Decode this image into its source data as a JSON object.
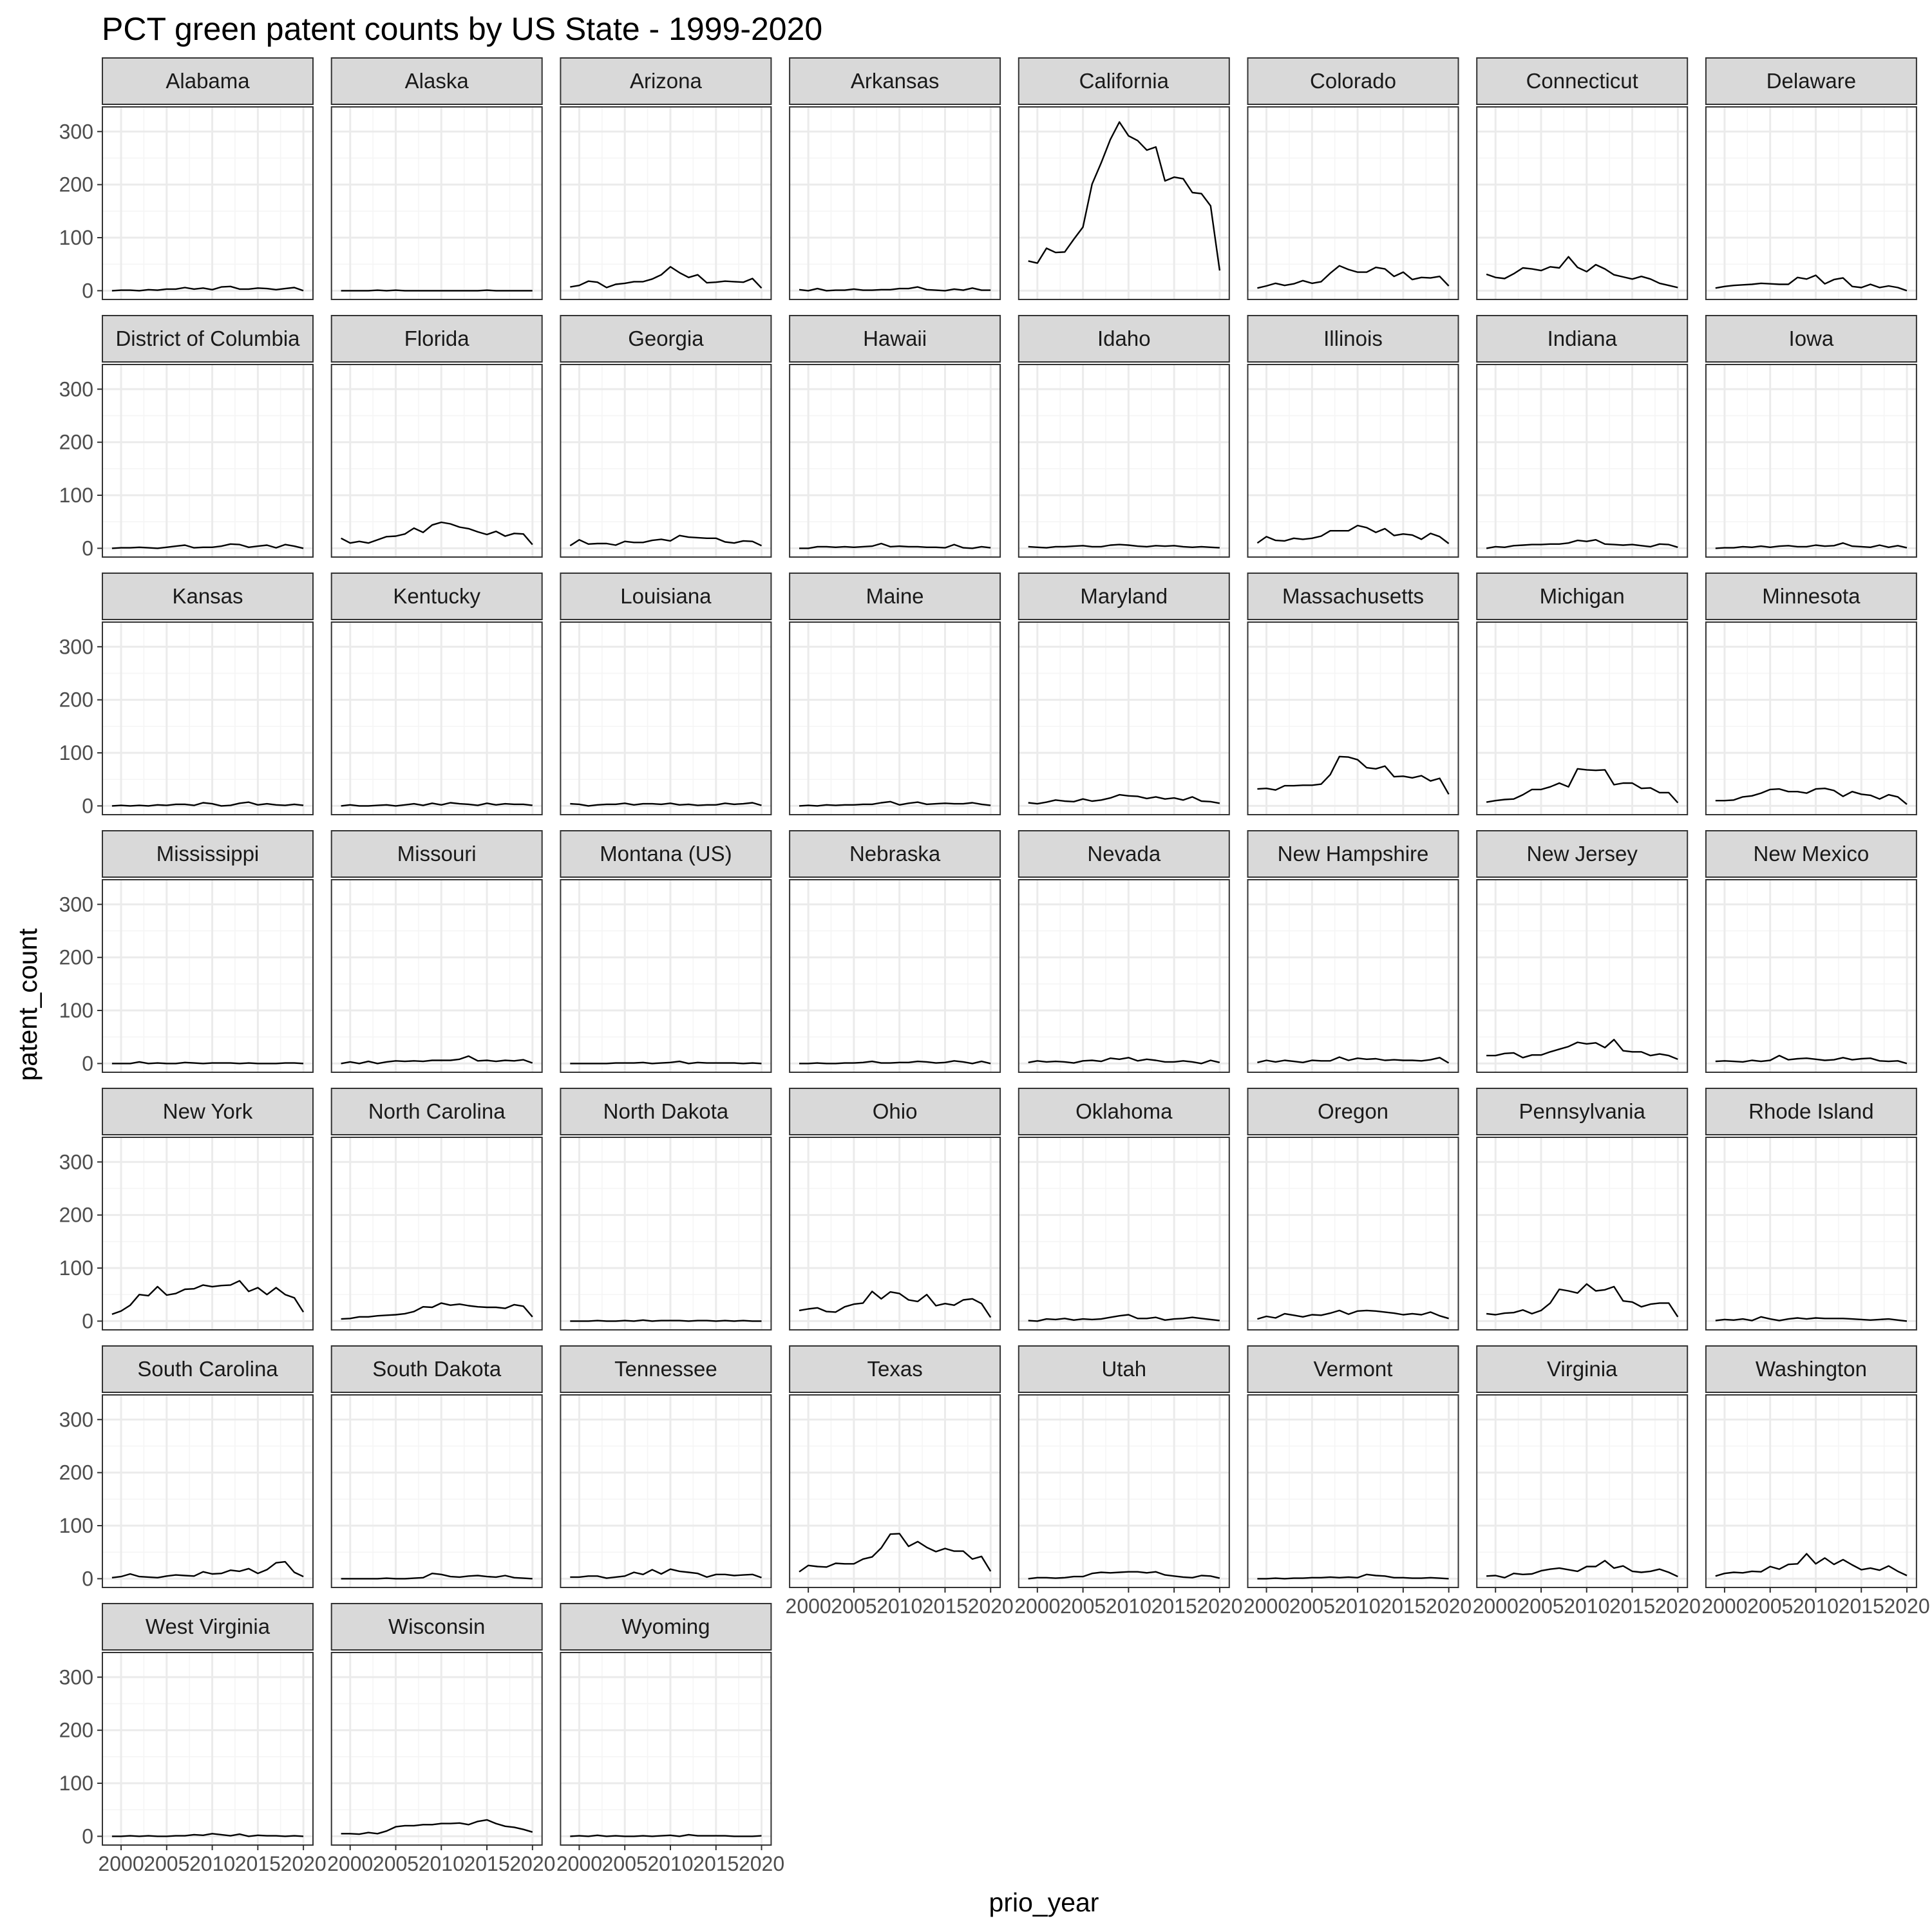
{
  "chart_data": {
    "type": "line",
    "title": "PCT green patent counts by US State - 1999-2020",
    "xlabel": "prio_year",
    "ylabel": "patent_count",
    "xlim": [
      1999,
      2020
    ],
    "ylim": [
      0,
      330
    ],
    "x_ticks": [
      2000,
      2005,
      2010,
      2015,
      2020
    ],
    "x_tick_labels": [
      "2000",
      "2005",
      "2010",
      "2015",
      "2020"
    ],
    "y_ticks": [
      0,
      100,
      200,
      300
    ],
    "y_tick_labels": [
      "0",
      "100",
      "200",
      "300"
    ],
    "grid": true,
    "facet_columns": 8,
    "line_color": "#000000",
    "x": [
      1999,
      2000,
      2001,
      2002,
      2003,
      2004,
      2005,
      2006,
      2007,
      2008,
      2009,
      2010,
      2011,
      2012,
      2013,
      2014,
      2015,
      2016,
      2017,
      2018,
      2019,
      2020
    ],
    "panels": [
      {
        "name": "Alabama",
        "values": [
          0,
          1,
          1,
          0,
          2,
          1,
          3,
          3,
          6,
          3,
          5,
          2,
          7,
          8,
          3,
          3,
          5,
          4,
          2,
          4,
          6,
          0
        ]
      },
      {
        "name": "Alaska",
        "values": [
          0,
          0,
          0,
          0,
          1,
          0,
          1,
          0,
          0,
          0,
          0,
          0,
          0,
          0,
          0,
          0,
          1,
          0,
          0,
          0,
          0,
          0
        ]
      },
      {
        "name": "Arizona",
        "values": [
          7,
          10,
          18,
          16,
          6,
          12,
          14,
          17,
          17,
          22,
          30,
          45,
          34,
          25,
          30,
          15,
          16,
          18,
          17,
          16,
          23,
          5
        ]
      },
      {
        "name": "Arkansas",
        "values": [
          2,
          0,
          4,
          0,
          1,
          1,
          3,
          1,
          1,
          2,
          2,
          4,
          4,
          7,
          2,
          1,
          0,
          3,
          1,
          5,
          1,
          1
        ]
      },
      {
        "name": "California",
        "values": [
          56,
          52,
          80,
          72,
          73,
          97,
          120,
          201,
          241,
          285,
          318,
          292,
          283,
          265,
          271,
          207,
          214,
          211,
          185,
          183,
          160,
          38
        ]
      },
      {
        "name": "Colorado",
        "values": [
          5,
          9,
          14,
          10,
          13,
          19,
          14,
          17,
          33,
          47,
          40,
          35,
          35,
          44,
          41,
          27,
          35,
          21,
          25,
          24,
          27,
          9
        ]
      },
      {
        "name": "Connecticut",
        "values": [
          31,
          25,
          23,
          32,
          43,
          41,
          38,
          45,
          43,
          64,
          44,
          36,
          49,
          41,
          30,
          26,
          22,
          27,
          22,
          14,
          10,
          6
        ]
      },
      {
        "name": "Delaware",
        "values": [
          5,
          8,
          10,
          11,
          12,
          14,
          13,
          12,
          12,
          25,
          22,
          29,
          13,
          21,
          24,
          8,
          6,
          12,
          6,
          9,
          6,
          0
        ]
      },
      {
        "name": "District of Columbia",
        "values": [
          0,
          1,
          1,
          2,
          1,
          0,
          2,
          4,
          6,
          1,
          2,
          2,
          4,
          8,
          7,
          2,
          4,
          6,
          1,
          7,
          4,
          0
        ]
      },
      {
        "name": "Florida",
        "values": [
          19,
          10,
          13,
          10,
          16,
          22,
          23,
          27,
          38,
          30,
          44,
          49,
          46,
          40,
          37,
          31,
          26,
          32,
          23,
          28,
          27,
          7
        ]
      },
      {
        "name": "Georgia",
        "values": [
          5,
          16,
          8,
          9,
          9,
          6,
          13,
          11,
          11,
          15,
          17,
          14,
          24,
          21,
          20,
          19,
          19,
          12,
          10,
          14,
          13,
          5
        ]
      },
      {
        "name": "Hawaii",
        "values": [
          0,
          0,
          3,
          3,
          2,
          3,
          2,
          3,
          4,
          9,
          3,
          4,
          3,
          3,
          2,
          2,
          1,
          7,
          1,
          0,
          3,
          1
        ]
      },
      {
        "name": "Idaho",
        "values": [
          3,
          2,
          1,
          3,
          3,
          4,
          5,
          3,
          3,
          6,
          7,
          6,
          4,
          3,
          5,
          4,
          5,
          3,
          2,
          3,
          2,
          1
        ]
      },
      {
        "name": "Illinois",
        "values": [
          10,
          22,
          15,
          14,
          19,
          17,
          19,
          23,
          33,
          33,
          33,
          43,
          39,
          30,
          37,
          24,
          27,
          25,
          17,
          28,
          22,
          9
        ]
      },
      {
        "name": "Indiana",
        "values": [
          0,
          3,
          2,
          5,
          6,
          7,
          7,
          8,
          8,
          10,
          15,
          13,
          16,
          8,
          7,
          6,
          7,
          5,
          3,
          8,
          7,
          2
        ]
      },
      {
        "name": "Iowa",
        "values": [
          0,
          1,
          1,
          3,
          2,
          4,
          2,
          4,
          5,
          3,
          3,
          6,
          4,
          5,
          10,
          4,
          3,
          2,
          6,
          2,
          5,
          1
        ]
      },
      {
        "name": "Kansas",
        "values": [
          0,
          1,
          0,
          1,
          0,
          2,
          1,
          3,
          3,
          1,
          6,
          4,
          0,
          1,
          5,
          7,
          2,
          4,
          2,
          1,
          3,
          1
        ]
      },
      {
        "name": "Kentucky",
        "values": [
          0,
          2,
          0,
          0,
          1,
          2,
          0,
          2,
          4,
          1,
          5,
          2,
          6,
          4,
          3,
          1,
          5,
          2,
          4,
          3,
          3,
          1
        ]
      },
      {
        "name": "Louisiana",
        "values": [
          4,
          3,
          0,
          2,
          3,
          3,
          5,
          2,
          4,
          4,
          3,
          5,
          2,
          3,
          1,
          2,
          2,
          5,
          3,
          4,
          6,
          1
        ]
      },
      {
        "name": "Maine",
        "values": [
          0,
          1,
          0,
          2,
          1,
          2,
          2,
          3,
          3,
          6,
          8,
          2,
          5,
          7,
          3,
          4,
          5,
          4,
          4,
          6,
          3,
          1
        ]
      },
      {
        "name": "Maryland",
        "values": [
          6,
          4,
          7,
          11,
          9,
          8,
          13,
          9,
          11,
          15,
          21,
          19,
          18,
          14,
          17,
          13,
          15,
          11,
          17,
          9,
          8,
          5
        ]
      },
      {
        "name": "Massachusetts",
        "values": [
          32,
          33,
          30,
          38,
          38,
          39,
          39,
          41,
          59,
          93,
          92,
          87,
          72,
          70,
          75,
          55,
          56,
          53,
          57,
          47,
          52,
          22
        ]
      },
      {
        "name": "Michigan",
        "values": [
          7,
          10,
          12,
          13,
          21,
          31,
          31,
          36,
          43,
          36,
          70,
          68,
          67,
          68,
          40,
          43,
          43,
          33,
          34,
          25,
          25,
          6
        ]
      },
      {
        "name": "Minnesota",
        "values": [
          10,
          10,
          11,
          17,
          19,
          24,
          31,
          32,
          27,
          27,
          24,
          32,
          33,
          29,
          18,
          27,
          22,
          20,
          13,
          21,
          17,
          3
        ]
      },
      {
        "name": "Mississippi",
        "values": [
          0,
          0,
          0,
          3,
          0,
          1,
          0,
          0,
          2,
          1,
          0,
          1,
          1,
          1,
          0,
          1,
          0,
          0,
          0,
          1,
          1,
          0
        ]
      },
      {
        "name": "Missouri",
        "values": [
          0,
          3,
          0,
          4,
          0,
          3,
          5,
          4,
          5,
          4,
          6,
          6,
          6,
          8,
          14,
          5,
          6,
          4,
          6,
          5,
          7,
          1
        ]
      },
      {
        "name": "Montana (US)",
        "values": [
          0,
          0,
          0,
          0,
          0,
          1,
          1,
          1,
          2,
          0,
          1,
          2,
          4,
          0,
          2,
          1,
          1,
          1,
          1,
          0,
          1,
          0
        ]
      },
      {
        "name": "Nebraska",
        "values": [
          0,
          0,
          1,
          0,
          0,
          1,
          1,
          2,
          4,
          1,
          1,
          2,
          2,
          4,
          3,
          1,
          2,
          5,
          3,
          0,
          4,
          0
        ]
      },
      {
        "name": "Nevada",
        "values": [
          2,
          5,
          3,
          4,
          3,
          1,
          5,
          6,
          4,
          10,
          8,
          11,
          5,
          8,
          6,
          3,
          3,
          5,
          3,
          0,
          6,
          2
        ]
      },
      {
        "name": "New Hampshire",
        "values": [
          2,
          6,
          3,
          6,
          4,
          2,
          6,
          5,
          5,
          12,
          6,
          10,
          8,
          9,
          6,
          7,
          6,
          6,
          5,
          7,
          11,
          1
        ]
      },
      {
        "name": "New Jersey",
        "values": [
          15,
          15,
          19,
          20,
          11,
          16,
          16,
          22,
          27,
          32,
          40,
          37,
          39,
          30,
          45,
          24,
          22,
          22,
          15,
          18,
          15,
          8
        ]
      },
      {
        "name": "New Mexico",
        "values": [
          4,
          5,
          4,
          3,
          6,
          4,
          6,
          15,
          7,
          9,
          10,
          8,
          6,
          7,
          11,
          7,
          9,
          10,
          5,
          4,
          5,
          0
        ]
      },
      {
        "name": "New York",
        "values": [
          13,
          19,
          30,
          50,
          48,
          65,
          49,
          52,
          60,
          61,
          68,
          65,
          67,
          68,
          76,
          56,
          63,
          50,
          63,
          50,
          44,
          17
        ]
      },
      {
        "name": "North Carolina",
        "values": [
          4,
          5,
          8,
          8,
          10,
          11,
          12,
          14,
          18,
          27,
          26,
          34,
          30,
          32,
          29,
          27,
          26,
          26,
          24,
          31,
          28,
          8
        ]
      },
      {
        "name": "North Dakota",
        "values": [
          0,
          0,
          0,
          1,
          0,
          0,
          1,
          0,
          2,
          0,
          1,
          1,
          1,
          0,
          1,
          1,
          0,
          1,
          0,
          1,
          0,
          0
        ]
      },
      {
        "name": "Ohio",
        "values": [
          20,
          23,
          25,
          18,
          17,
          27,
          32,
          34,
          56,
          42,
          55,
          52,
          40,
          37,
          50,
          29,
          33,
          30,
          40,
          42,
          33,
          7
        ]
      },
      {
        "name": "Oklahoma",
        "values": [
          1,
          0,
          4,
          3,
          5,
          2,
          4,
          3,
          4,
          7,
          10,
          12,
          5,
          5,
          7,
          2,
          4,
          5,
          7,
          5,
          3,
          1
        ]
      },
      {
        "name": "Oregon",
        "values": [
          4,
          9,
          6,
          14,
          11,
          8,
          12,
          11,
          15,
          20,
          13,
          19,
          20,
          19,
          17,
          15,
          12,
          14,
          12,
          17,
          10,
          5
        ]
      },
      {
        "name": "Pennsylvania",
        "values": [
          14,
          12,
          15,
          16,
          21,
          14,
          20,
          34,
          60,
          57,
          53,
          70,
          57,
          59,
          65,
          38,
          36,
          27,
          32,
          34,
          34,
          8
        ]
      },
      {
        "name": "Rhode Island",
        "values": [
          1,
          3,
          2,
          4,
          1,
          8,
          4,
          1,
          4,
          6,
          4,
          6,
          5,
          5,
          5,
          4,
          3,
          2,
          3,
          4,
          2,
          0
        ]
      },
      {
        "name": "South Carolina",
        "values": [
          2,
          4,
          9,
          4,
          3,
          2,
          5,
          7,
          6,
          5,
          13,
          9,
          10,
          16,
          14,
          19,
          10,
          17,
          30,
          32,
          12,
          4
        ]
      },
      {
        "name": "South Dakota",
        "values": [
          0,
          0,
          0,
          0,
          0,
          1,
          0,
          0,
          1,
          2,
          10,
          8,
          4,
          3,
          5,
          6,
          4,
          3,
          6,
          2,
          1,
          0
        ]
      },
      {
        "name": "Tennessee",
        "values": [
          3,
          3,
          5,
          5,
          1,
          3,
          5,
          12,
          8,
          17,
          9,
          18,
          14,
          12,
          10,
          3,
          8,
          8,
          6,
          7,
          8,
          2
        ]
      },
      {
        "name": "Texas",
        "values": [
          13,
          25,
          23,
          22,
          29,
          28,
          28,
          37,
          41,
          58,
          84,
          85,
          61,
          70,
          59,
          51,
          57,
          52,
          52,
          37,
          42,
          14
        ]
      },
      {
        "name": "Utah",
        "values": [
          0,
          2,
          2,
          1,
          2,
          4,
          4,
          10,
          12,
          11,
          12,
          13,
          13,
          11,
          13,
          7,
          5,
          3,
          2,
          6,
          5,
          1
        ]
      },
      {
        "name": "Vermont",
        "values": [
          0,
          0,
          1,
          0,
          1,
          1,
          2,
          2,
          3,
          2,
          3,
          2,
          8,
          6,
          5,
          2,
          2,
          1,
          1,
          2,
          1,
          0
        ]
      },
      {
        "name": "Virginia",
        "values": [
          5,
          6,
          2,
          10,
          8,
          9,
          15,
          18,
          20,
          17,
          14,
          23,
          23,
          34,
          20,
          24,
          14,
          12,
          14,
          18,
          12,
          4
        ]
      },
      {
        "name": "Washington",
        "values": [
          5,
          10,
          12,
          11,
          14,
          13,
          23,
          18,
          27,
          28,
          47,
          28,
          39,
          27,
          36,
          26,
          17,
          20,
          16,
          24,
          14,
          6
        ]
      },
      {
        "name": "West Virginia",
        "values": [
          0,
          0,
          1,
          0,
          1,
          0,
          0,
          1,
          1,
          3,
          2,
          5,
          3,
          1,
          4,
          0,
          2,
          1,
          1,
          0,
          1,
          0
        ]
      },
      {
        "name": "Wisconsin",
        "values": [
          5,
          5,
          4,
          7,
          5,
          10,
          18,
          20,
          20,
          22,
          22,
          24,
          24,
          25,
          22,
          28,
          31,
          24,
          19,
          17,
          13,
          8
        ]
      },
      {
        "name": "Wyoming",
        "values": [
          0,
          1,
          0,
          2,
          0,
          1,
          0,
          0,
          1,
          0,
          1,
          2,
          0,
          3,
          1,
          1,
          1,
          1,
          0,
          0,
          0,
          1
        ]
      }
    ]
  }
}
